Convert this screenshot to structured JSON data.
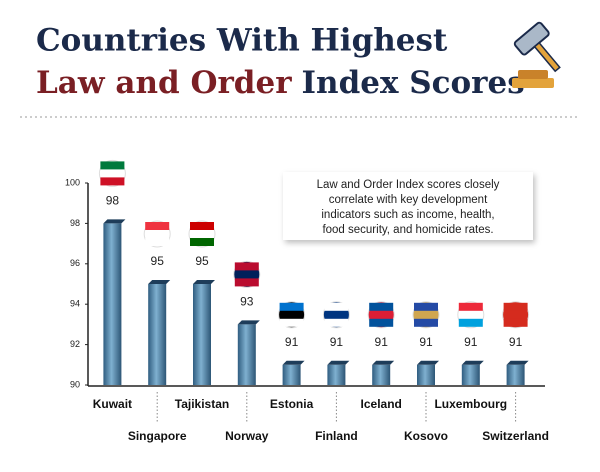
{
  "chart_data": {
    "type": "bar",
    "title_line1": "Countries With Highest",
    "title_line2_part1": "Law and Order",
    "title_line2_part2": "Index Scores",
    "annotation": [
      "Law and Order Index scores closely",
      "correlate with key development",
      "indicators such as income, health,",
      "food security, and homicide rates."
    ],
    "categories": [
      "Kuwait",
      "Singapore",
      "Tajikistan",
      "Norway",
      "Estonia",
      "Finland",
      "Iceland",
      "Kosovo",
      "Luxembourg",
      "Switzerland"
    ],
    "values": [
      98,
      95,
      95,
      93,
      91,
      91,
      91,
      91,
      91,
      91
    ],
    "color": "#4f86ad",
    "ylim": [
      90,
      100
    ],
    "yticks": [
      90,
      92,
      94,
      96,
      98,
      100
    ]
  }
}
